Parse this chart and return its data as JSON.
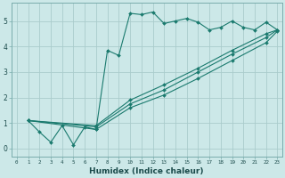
{
  "xlabel": "Humidex (Indice chaleur)",
  "background_color": "#cce8e8",
  "line_color": "#1a7a6e",
  "grid_color": "#aacccc",
  "xlim": [
    -0.5,
    23.4
  ],
  "ylim": [
    -0.3,
    5.7
  ],
  "yticks": [
    0,
    1,
    2,
    3,
    4,
    5
  ],
  "series": [
    {
      "x": [
        1,
        2,
        3,
        4,
        5,
        6,
        7,
        8,
        9,
        10,
        11,
        12,
        13,
        14,
        15,
        16,
        17,
        18,
        19,
        20,
        21,
        22,
        23
      ],
      "y": [
        1.1,
        0.65,
        0.25,
        0.9,
        0.15,
        0.85,
        0.75,
        3.85,
        3.65,
        5.3,
        5.25,
        5.35,
        4.9,
        5.0,
        5.1,
        4.95,
        4.65,
        4.75,
        5.0,
        4.75,
        4.65,
        4.95,
        4.65
      ]
    },
    {
      "x": [
        1,
        7,
        10,
        13,
        16,
        19,
        22,
        23
      ],
      "y": [
        1.1,
        0.75,
        1.6,
        2.1,
        2.75,
        3.45,
        4.15,
        4.6
      ]
    },
    {
      "x": [
        1,
        7,
        10,
        13,
        16,
        19,
        22,
        23
      ],
      "y": [
        1.1,
        0.85,
        1.75,
        2.3,
        3.0,
        3.7,
        4.35,
        4.65
      ]
    },
    {
      "x": [
        1,
        7,
        10,
        13,
        16,
        19,
        22,
        23
      ],
      "y": [
        1.1,
        0.9,
        1.9,
        2.5,
        3.15,
        3.85,
        4.5,
        4.65
      ]
    }
  ]
}
